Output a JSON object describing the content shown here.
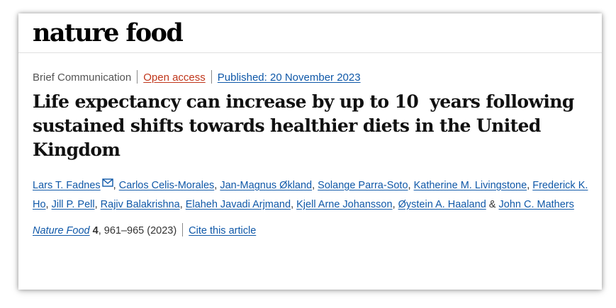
{
  "header": {
    "logo": "nature food"
  },
  "article": {
    "type": "Brief Communication",
    "access": "Open access",
    "published": "Published: 20 November 2023",
    "title": "Life expectancy can increase by up to 10  years following sustained shifts towards healthier diets in the United Kingdom",
    "authors": [
      {
        "name": "Lars T. Fadnes",
        "sep": ", ",
        "has_mail_icon": true
      },
      {
        "name": "Carlos Celis-Morales",
        "sep": ", "
      },
      {
        "name": "Jan-Magnus Økland",
        "sep": ", "
      },
      {
        "name": "Solange Parra-Soto",
        "sep": ", "
      },
      {
        "name": "Katherine M. Livingstone",
        "sep": ", "
      },
      {
        "name": "Frederick K. Ho",
        "sep": ", "
      },
      {
        "name": "Jill P. Pell",
        "sep": ", "
      },
      {
        "name": "Rajiv Balakrishna",
        "sep": ", "
      },
      {
        "name": "Elaheh Javadi Arjmand",
        "sep": ", "
      },
      {
        "name": "Kjell Arne Johansson",
        "sep": ", "
      },
      {
        "name": "Øystein A. Haaland",
        "sep": " & "
      },
      {
        "name": "John C. Mathers",
        "sep": ""
      }
    ],
    "citation": {
      "journal": "Nature Food",
      "volume": "4",
      "pages": ", 961–965 (2023)",
      "cite_link": "Cite this article"
    }
  },
  "colors": {
    "link": "#0f58a8",
    "open_access": "#c0361b"
  },
  "icons": {
    "author_contact": "mail-icon"
  }
}
